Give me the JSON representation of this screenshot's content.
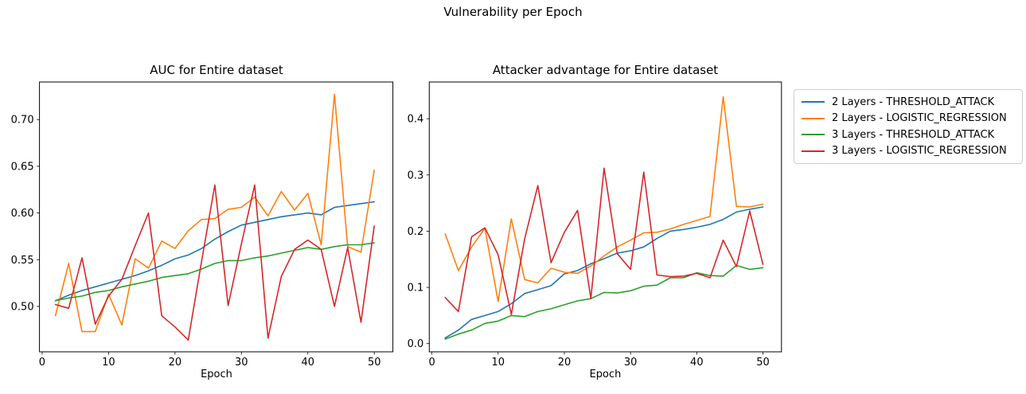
{
  "figure": {
    "suptitle": "Vulnerability per Epoch"
  },
  "legend": {
    "position": "outside-upper-right",
    "items": [
      {
        "label": "2 Layers - THRESHOLD_ATTACK",
        "color": "#1f77b4"
      },
      {
        "label": "2 Layers - LOGISTIC_REGRESSION",
        "color": "#ff7f0e"
      },
      {
        "label": "3 Layers - THRESHOLD_ATTACK",
        "color": "#2ca02c"
      },
      {
        "label": "3 Layers - LOGISTIC_REGRESSION",
        "color": "#d62728"
      }
    ]
  },
  "chart_data": [
    {
      "type": "line",
      "title": "AUC for Entire dataset",
      "xlabel": "Epoch",
      "grid": false,
      "xlim": [
        -0.4,
        52.8
      ],
      "ylim": [
        0.4514,
        0.7402
      ],
      "xticks": [
        0,
        10,
        20,
        30,
        40,
        50
      ],
      "xtick_labels": [
        "0",
        "10",
        "20",
        "30",
        "40",
        "50"
      ],
      "yticks": [
        0.5,
        0.55,
        0.6,
        0.65,
        0.7
      ],
      "ytick_labels": [
        "0.50",
        "0.55",
        "0.60",
        "0.65",
        "0.70"
      ],
      "x": [
        2,
        4,
        6,
        8,
        10,
        12,
        14,
        16,
        18,
        20,
        22,
        24,
        26,
        28,
        30,
        32,
        34,
        36,
        38,
        40,
        42,
        44,
        46,
        48,
        50
      ],
      "series": [
        {
          "name": "2 Layers - THRESHOLD_ATTACK",
          "color": "#1f77b4",
          "values": [
            0.506,
            0.512,
            0.517,
            0.521,
            0.525,
            0.529,
            0.533,
            0.538,
            0.544,
            0.551,
            0.555,
            0.562,
            0.572,
            0.58,
            0.587,
            0.59,
            0.593,
            0.596,
            0.598,
            0.6,
            0.598,
            0.606,
            0.608,
            0.61,
            0.612
          ]
        },
        {
          "name": "2 Layers - LOGISTIC_REGRESSION",
          "color": "#ff7f0e",
          "values": [
            0.49,
            0.546,
            0.473,
            0.473,
            0.513,
            0.48,
            0.551,
            0.541,
            0.57,
            0.562,
            0.581,
            0.593,
            0.594,
            0.604,
            0.606,
            0.617,
            0.597,
            0.623,
            0.603,
            0.621,
            0.566,
            0.727,
            0.564,
            0.558,
            0.646
          ]
        },
        {
          "name": "3 Layers - THRESHOLD_ATTACK",
          "color": "#2ca02c",
          "values": [
            0.506,
            0.509,
            0.511,
            0.515,
            0.517,
            0.521,
            0.524,
            0.527,
            0.531,
            0.533,
            0.535,
            0.54,
            0.546,
            0.549,
            0.549,
            0.552,
            0.554,
            0.557,
            0.56,
            0.563,
            0.561,
            0.564,
            0.566,
            0.566,
            0.568
          ]
        },
        {
          "name": "3 Layers - LOGISTIC_REGRESSION",
          "color": "#d62728",
          "values": [
            0.502,
            0.498,
            0.552,
            0.481,
            0.511,
            0.529,
            0.565,
            0.6,
            0.49,
            0.478,
            0.464,
            0.548,
            0.63,
            0.501,
            0.567,
            0.63,
            0.466,
            0.532,
            0.561,
            0.571,
            0.561,
            0.5,
            0.563,
            0.483,
            0.586
          ]
        }
      ]
    },
    {
      "type": "line",
      "title": "Attacker advantage for Entire dataset",
      "xlabel": "Epoch",
      "grid": false,
      "xlim": [
        -0.4,
        52.8
      ],
      "ylim": [
        -0.0146,
        0.4653
      ],
      "xticks": [
        0,
        10,
        20,
        30,
        40,
        50
      ],
      "xtick_labels": [
        "0",
        "10",
        "20",
        "30",
        "40",
        "50"
      ],
      "yticks": [
        0.0,
        0.1,
        0.2,
        0.3,
        0.4
      ],
      "ytick_labels": [
        "0.0",
        "0.1",
        "0.2",
        "0.3",
        "0.4"
      ],
      "x": [
        2,
        4,
        6,
        8,
        10,
        12,
        14,
        16,
        18,
        20,
        22,
        24,
        26,
        28,
        30,
        32,
        34,
        36,
        38,
        40,
        42,
        44,
        46,
        48,
        50
      ],
      "series": [
        {
          "name": "2 Layers - THRESHOLD_ATTACK",
          "color": "#1f77b4",
          "values": [
            0.01,
            0.024,
            0.043,
            0.05,
            0.057,
            0.071,
            0.089,
            0.096,
            0.103,
            0.124,
            0.13,
            0.142,
            0.151,
            0.161,
            0.165,
            0.172,
            0.187,
            0.2,
            0.203,
            0.207,
            0.212,
            0.221,
            0.234,
            0.239,
            0.243
          ]
        },
        {
          "name": "2 Layers - LOGISTIC_REGRESSION",
          "color": "#ff7f0e",
          "values": [
            0.195,
            0.13,
            0.172,
            0.205,
            0.075,
            0.222,
            0.114,
            0.108,
            0.134,
            0.127,
            0.125,
            0.138,
            0.156,
            0.172,
            0.184,
            0.197,
            0.198,
            0.204,
            0.212,
            0.219,
            0.226,
            0.439,
            0.244,
            0.243,
            0.248
          ]
        },
        {
          "name": "3 Layers - THRESHOLD_ATTACK",
          "color": "#2ca02c",
          "values": [
            0.008,
            0.017,
            0.024,
            0.036,
            0.04,
            0.05,
            0.048,
            0.057,
            0.062,
            0.069,
            0.076,
            0.08,
            0.091,
            0.09,
            0.094,
            0.102,
            0.104,
            0.117,
            0.117,
            0.126,
            0.121,
            0.12,
            0.139,
            0.132,
            0.135
          ]
        },
        {
          "name": "3 Layers - LOGISTIC_REGRESSION",
          "color": "#d62728",
          "values": [
            0.082,
            0.057,
            0.19,
            0.206,
            0.158,
            0.052,
            0.186,
            0.281,
            0.144,
            0.198,
            0.237,
            0.08,
            0.312,
            0.16,
            0.132,
            0.305,
            0.122,
            0.119,
            0.12,
            0.125,
            0.117,
            0.184,
            0.137,
            0.236,
            0.141
          ]
        }
      ]
    }
  ]
}
